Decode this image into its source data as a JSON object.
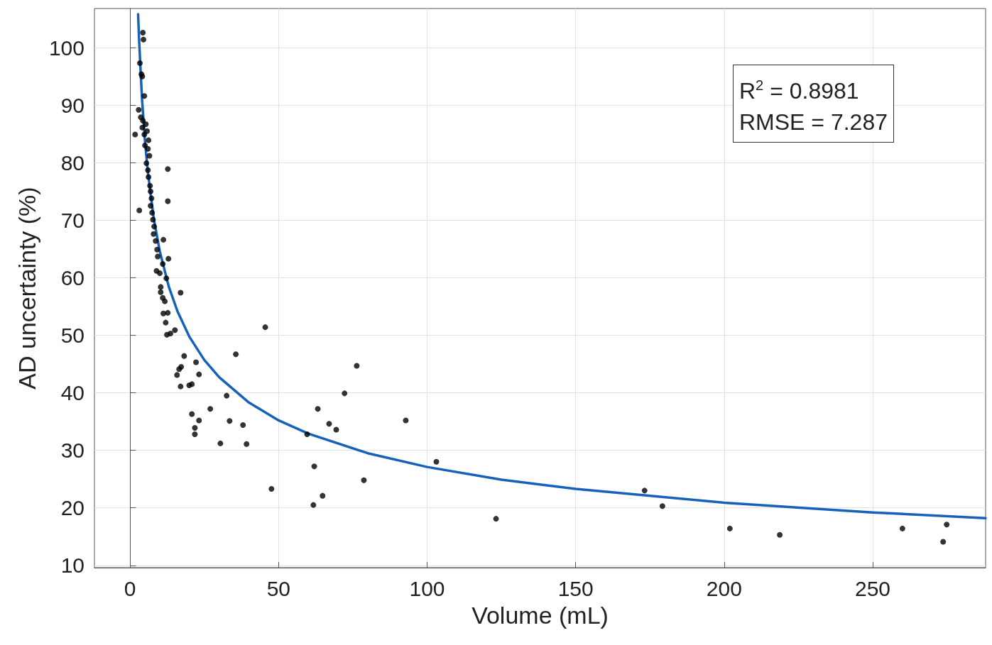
{
  "chart_data": {
    "type": "scatter",
    "xlabel": "Volume (mL)",
    "ylabel": "AD uncertainty (%)",
    "annotations": [
      "R$^{2}$ = 0.8981",
      "RMSE = 7.287"
    ],
    "xlim": [
      -12,
      288
    ],
    "ylim": [
      9.6,
      106.8
    ],
    "xticks": [
      0,
      50,
      100,
      150,
      200,
      250
    ],
    "yticks": [
      10,
      20,
      30,
      40,
      50,
      60,
      70,
      80,
      90,
      100
    ],
    "grid": true,
    "series": [
      {
        "marker": "circle",
        "color": "#000000",
        "x": [
          4.3,
          4.5,
          3.3,
          3.8,
          4.1,
          4.8,
          2.9,
          1.7,
          3.1,
          12.7,
          12.7,
          3.6,
          4.3,
          5.3,
          4.1,
          5.7,
          4.8,
          6.2,
          5.0,
          6.0,
          6.5,
          5.5,
          6.0,
          6.2,
          6.7,
          6.9,
          7.2,
          6.9,
          7.4,
          7.7,
          8.1,
          7.9,
          8.6,
          11.2,
          9.1,
          9.3,
          12.9,
          8.9,
          10.0,
          11.0,
          12.2,
          10.3,
          10.3,
          17.0,
          11.0,
          11.7,
          11.2,
          12.7,
          12.0,
          12.4,
          13.6,
          15.1,
          45.5,
          18.2,
          22.2,
          17.2,
          16.5,
          15.8,
          23.2,
          17.0,
          19.9,
          20.8,
          35.6,
          32.5,
          76.3,
          72.2,
          20.8,
          23.2,
          27.0,
          21.8,
          21.8,
          33.5,
          38.0,
          30.4,
          39.2,
          63.2,
          67.0,
          69.4,
          59.6,
          92.8,
          62.0,
          47.6,
          78.7,
          64.8,
          61.7,
          103.1,
          123.2,
          173.2,
          179.2,
          201.9,
          218.7,
          260.0,
          274.9,
          273.7
        ],
        "values": [
          102.6,
          101.4,
          97.3,
          95.4,
          95.0,
          91.6,
          89.2,
          84.9,
          71.7,
          78.9,
          73.3,
          87.9,
          87.3,
          86.7,
          86.1,
          85.5,
          84.9,
          83.9,
          83.0,
          82.4,
          81.2,
          79.9,
          78.7,
          77.5,
          76.0,
          75.0,
          73.8,
          72.5,
          71.3,
          70.1,
          68.9,
          67.6,
          66.4,
          66.6,
          64.9,
          63.7,
          63.3,
          61.2,
          60.8,
          62.4,
          59.9,
          58.4,
          57.5,
          57.4,
          56.5,
          55.9,
          53.8,
          53.9,
          52.2,
          50.1,
          50.3,
          50.9,
          51.4,
          46.4,
          45.3,
          44.5,
          44.1,
          43.1,
          43.2,
          41.1,
          41.3,
          41.5,
          46.7,
          39.5,
          44.7,
          39.9,
          36.3,
          35.2,
          37.2,
          33.9,
          32.8,
          35.1,
          34.4,
          31.2,
          31.1,
          37.2,
          34.6,
          33.6,
          32.8,
          35.2,
          27.2,
          23.3,
          24.8,
          22.1,
          20.5,
          28.0,
          18.1,
          23.0,
          20.3,
          16.4,
          15.3,
          16.4,
          17.1,
          14.1
        ]
      },
      {
        "type": "line",
        "marker": "none",
        "line_style": "solid",
        "color": "#1662bb",
        "x": [
          2.7,
          3,
          4,
          5,
          6,
          8,
          10,
          13,
          16,
          20,
          25,
          30,
          40,
          50,
          60,
          80,
          100,
          125,
          150,
          200,
          250,
          288
        ],
        "values": [
          105.8,
          101.7,
          91.2,
          83.8,
          78.3,
          70.2,
          64.6,
          58.5,
          54.1,
          49.7,
          45.7,
          42.7,
          38.3,
          35.2,
          32.9,
          29.5,
          27.1,
          24.9,
          23.3,
          20.9,
          19.2,
          18.2
        ]
      }
    ]
  }
}
